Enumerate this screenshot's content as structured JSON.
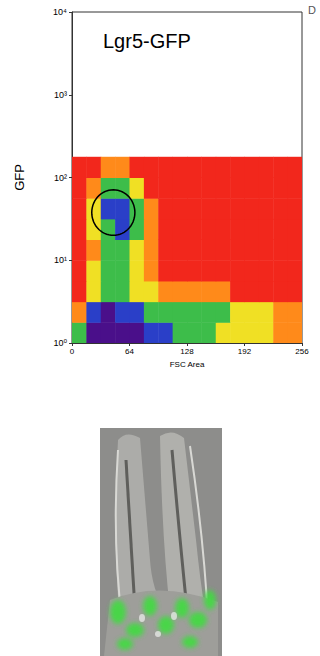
{
  "chart_data": {
    "type": "density",
    "title": "Lgr5-GFP",
    "annotation": "D",
    "x_label": "FSC Area",
    "y_label": "GFP",
    "xlim": [
      0,
      256
    ],
    "xticks": [
      0,
      64,
      128,
      192,
      256
    ],
    "ylim": [
      1,
      10000
    ],
    "yticks": [
      {
        "value": 1,
        "label": "10⁰"
      },
      {
        "value": 10,
        "label": "10¹"
      },
      {
        "value": 100,
        "label": "10²"
      },
      {
        "value": 1000,
        "label": "10³"
      },
      {
        "value": 10000,
        "label": "10⁴"
      }
    ],
    "log": "y",
    "grid": false,
    "x_bins": [
      0,
      16,
      32,
      48,
      64,
      80,
      96,
      112,
      128,
      144,
      160,
      176,
      192,
      208,
      224,
      240,
      256
    ],
    "y_bins": [
      1,
      1.78,
      3.16,
      5.62,
      10,
      17.8,
      31.6,
      56.2,
      100,
      178,
      316,
      562,
      1000,
      1780,
      3160,
      5620,
      10000
    ],
    "density": [
      [
        4,
        6,
        6,
        6,
        6,
        5,
        5,
        4,
        4,
        4,
        3,
        3,
        3,
        3,
        2,
        2
      ],
      [
        2,
        5,
        6,
        5,
        5,
        4,
        4,
        4,
        4,
        4,
        4,
        3,
        3,
        3,
        2,
        2
      ],
      [
        1,
        3,
        4,
        4,
        3,
        3,
        2,
        2,
        2,
        2,
        2,
        1,
        1,
        1,
        1,
        1
      ],
      [
        1,
        3,
        4,
        4,
        3,
        2,
        1,
        1,
        1,
        1,
        1,
        1,
        1,
        1,
        1,
        1
      ],
      [
        1,
        2,
        4,
        4,
        3,
        2,
        1,
        1,
        1,
        1,
        1,
        1,
        1,
        1,
        1,
        1
      ],
      [
        1,
        3,
        4,
        5,
        4,
        2,
        1,
        1,
        1,
        1,
        1,
        1,
        1,
        1,
        1,
        1
      ],
      [
        1,
        3,
        5,
        5,
        4,
        2,
        1,
        1,
        1,
        1,
        1,
        1,
        1,
        1,
        1,
        1
      ],
      [
        1,
        2,
        4,
        4,
        3,
        1,
        1,
        1,
        1,
        1,
        1,
        1,
        1,
        1,
        1,
        1
      ],
      [
        1,
        1,
        2,
        2,
        1,
        1,
        1,
        1,
        1,
        1,
        1,
        1,
        1,
        1,
        1,
        1
      ],
      [
        0,
        0,
        0,
        0,
        0,
        0,
        0,
        0,
        0,
        0,
        0,
        0,
        0,
        0,
        0,
        0
      ],
      [
        0,
        0,
        0,
        0,
        0,
        0,
        0,
        0,
        0,
        0,
        0,
        0,
        0,
        0,
        0,
        0
      ],
      [
        0,
        0,
        0,
        0,
        0,
        0,
        0,
        0,
        0,
        0,
        0,
        0,
        0,
        0,
        0,
        0
      ],
      [
        0,
        0,
        0,
        0,
        0,
        0,
        0,
        0,
        0,
        0,
        0,
        0,
        0,
        0,
        0,
        0
      ],
      [
        0,
        0,
        0,
        0,
        0,
        0,
        0,
        0,
        0,
        0,
        0,
        0,
        0,
        0,
        0,
        0
      ],
      [
        0,
        0,
        0,
        0,
        0,
        0,
        0,
        0,
        0,
        0,
        0,
        0,
        0,
        0,
        0,
        0
      ],
      [
        0,
        0,
        0,
        0,
        0,
        0,
        0,
        0,
        0,
        0,
        0,
        0,
        0,
        0,
        0,
        0
      ]
    ],
    "colors": [
      "#f2271c",
      "#ff8a1a",
      "#f0e024",
      "#3dbd4a",
      "#2a3fc8",
      "#4a0f8a"
    ],
    "gate": {
      "x": [
        22,
        70
      ],
      "y": [
        20,
        71
      ]
    }
  }
}
